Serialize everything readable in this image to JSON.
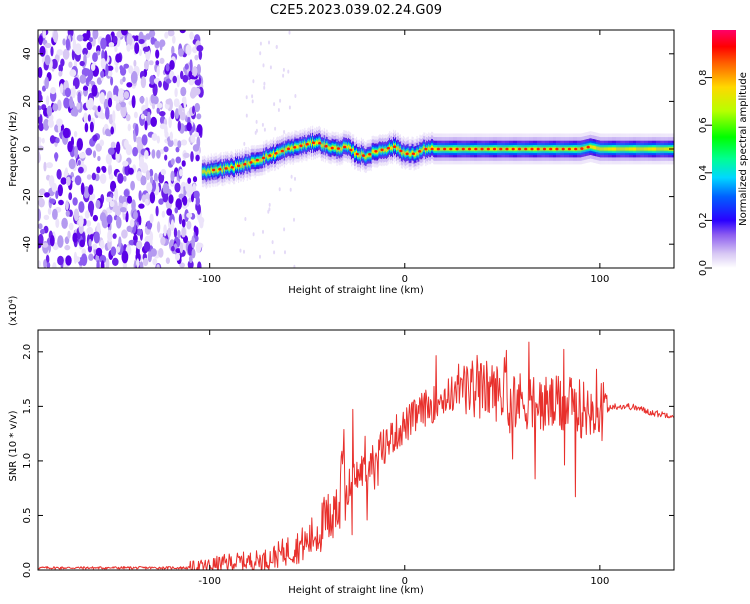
{
  "title": "C2E5.2023.039.02.24.G09",
  "colors": {
    "snr_line": "#e8302c",
    "colormap": [
      "#d9d9f7",
      "#9b7af0",
      "#5a00e6",
      "#0000ff",
      "#00b4ff",
      "#00ffb0",
      "#00ff00",
      "#c8ff00",
      "#ffd800",
      "#ff6a00",
      "#ff0000",
      "#ff0066"
    ]
  },
  "chart_data": [
    {
      "type": "heatmap",
      "xlabel": "Height of straight line (km)",
      "ylabel": "Frequency (Hz)",
      "xlim": [
        -188,
        138
      ],
      "ylim": [
        -50,
        50
      ],
      "x_ticks": [
        -100,
        0,
        100
      ],
      "y_ticks": [
        -40,
        -20,
        0,
        20,
        40
      ],
      "colorbar": {
        "label": "Normalized spectral amplitude",
        "range": [
          0,
          1
        ],
        "ticks": [
          "0.0",
          "0.2",
          "0.4",
          "0.6",
          "0.8"
        ]
      },
      "ridge": {
        "x": [
          -104,
          -100,
          -90,
          -80,
          -70,
          -60,
          -50,
          -45,
          -40,
          -35,
          -30,
          -25,
          -20,
          -15,
          -10,
          -5,
          0,
          5,
          10,
          20,
          40,
          60,
          80,
          90,
          95,
          100,
          138
        ],
        "freq": [
          -10,
          -9,
          -8,
          -6,
          -3,
          0,
          2,
          3,
          1,
          0,
          1,
          -2,
          -3,
          -1,
          0,
          1,
          -2,
          -2,
          0,
          0,
          0,
          0,
          0,
          0,
          1,
          0,
          0
        ]
      }
    },
    {
      "type": "line",
      "xlabel": "Height of straight line (km)",
      "ylabel": "SNR (10 * v/v)",
      "y_multiplier": "(x10⁴)",
      "xlim": [
        -188,
        138
      ],
      "ylim": [
        0,
        2.2
      ],
      "x_ticks": [
        -100,
        0,
        100
      ],
      "y_ticks": [
        "0.0",
        "0.5",
        "1.0",
        "1.5",
        "2.0"
      ],
      "series": [
        {
          "x": [
            -188,
            -150,
            -110,
            -100,
            -90,
            -80,
            -70,
            -60,
            -50,
            -40,
            -35,
            -30,
            -25,
            -20,
            -15,
            -10,
            -5,
            0,
            5,
            10,
            15,
            20,
            25,
            30,
            35,
            40,
            45,
            50,
            55,
            60,
            65,
            70,
            75,
            80,
            85,
            90,
            95,
            100,
            105,
            110,
            115,
            120,
            125,
            130,
            138
          ],
          "values": [
            0.02,
            0.02,
            0.02,
            0.04,
            0.07,
            0.08,
            0.1,
            0.18,
            0.25,
            0.45,
            0.65,
            0.75,
            0.85,
            0.95,
            1.05,
            1.15,
            1.25,
            1.32,
            1.4,
            1.48,
            1.52,
            1.58,
            1.62,
            1.65,
            1.66,
            1.66,
            1.65,
            1.6,
            1.58,
            1.55,
            1.55,
            1.52,
            1.52,
            1.5,
            1.5,
            1.48,
            1.48,
            1.46,
            1.5,
            1.5,
            1.5,
            1.48,
            1.45,
            1.43,
            1.42
          ]
        }
      ]
    }
  ]
}
